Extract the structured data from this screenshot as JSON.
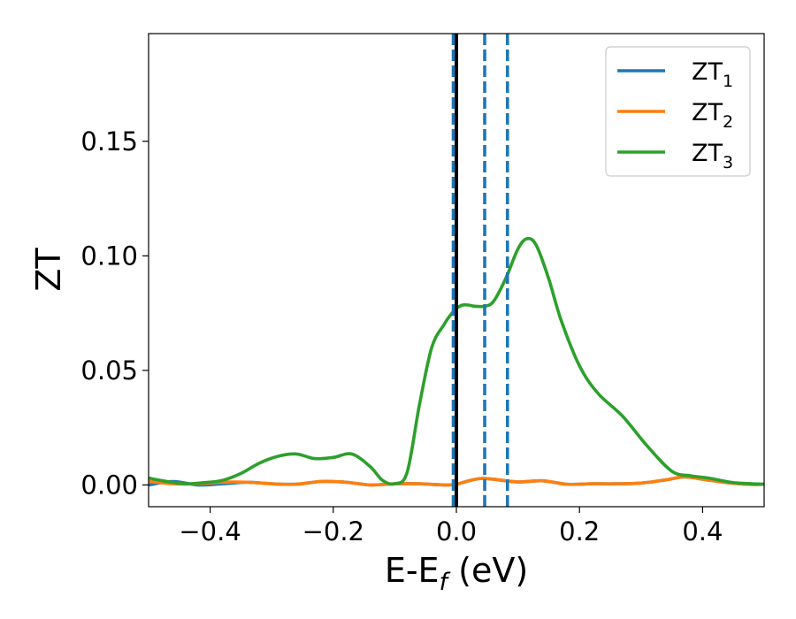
{
  "chart_data": {
    "type": "line",
    "xlabel": {
      "base": "E-E",
      "sub": "f",
      "suffix": " (eV)"
    },
    "ylabel": "ZT",
    "xlim": [
      -0.5,
      0.5
    ],
    "ylim": [
      -0.0095,
      0.197
    ],
    "xticks": [
      -0.4,
      -0.2,
      0.0,
      0.2,
      0.4
    ],
    "xtick_labels": [
      "−0.4",
      "−0.2",
      "0.0",
      "0.2",
      "0.4"
    ],
    "yticks": [
      0.0,
      0.05,
      0.1,
      0.15
    ],
    "ytick_labels": [
      "0.00",
      "0.05",
      "0.10",
      "0.15"
    ],
    "grid": false,
    "legend_position": "top-right",
    "series": [
      {
        "name": "ZT",
        "sub": "1",
        "color": "#1f77b4",
        "x": [
          -0.5,
          -0.46,
          -0.42,
          -0.38,
          -0.34,
          -0.3,
          -0.26,
          -0.22,
          -0.18,
          -0.14,
          -0.1,
          -0.06,
          -0.02,
          0.0,
          0.02,
          0.04,
          0.06,
          0.1,
          0.14,
          0.18,
          0.22,
          0.26,
          0.3,
          0.34,
          0.37,
          0.4,
          0.44,
          0.48,
          0.5
        ],
        "y": [
          0.0,
          0.0015,
          0.0,
          0.0005,
          0.0012,
          0.0005,
          0.0003,
          0.0015,
          0.0012,
          0.0,
          0.0005,
          0.0005,
          0.0,
          0.0003,
          0.0018,
          0.0028,
          0.0025,
          0.0013,
          0.0018,
          0.0003,
          0.0005,
          0.0005,
          0.0008,
          0.0022,
          0.0035,
          0.0025,
          0.001,
          0.0002,
          0.0003
        ]
      },
      {
        "name": "ZT",
        "sub": "2",
        "color": "#ff7f0e",
        "x": [
          -0.5,
          -0.46,
          -0.42,
          -0.38,
          -0.34,
          -0.3,
          -0.26,
          -0.22,
          -0.18,
          -0.14,
          -0.1,
          -0.06,
          -0.02,
          0.0,
          0.02,
          0.04,
          0.06,
          0.1,
          0.14,
          0.18,
          0.22,
          0.26,
          0.3,
          0.34,
          0.37,
          0.4,
          0.44,
          0.48,
          0.5
        ],
        "y": [
          0.0015,
          0.0005,
          0.0005,
          0.0012,
          0.0012,
          0.0005,
          0.0003,
          0.0015,
          0.0012,
          0.0,
          0.0005,
          0.0005,
          0.0,
          0.0003,
          0.0018,
          0.0028,
          0.0025,
          0.0013,
          0.0018,
          0.0003,
          0.0005,
          0.0005,
          0.0008,
          0.0022,
          0.0035,
          0.0025,
          0.001,
          0.0002,
          0.0003
        ]
      },
      {
        "name": "ZT",
        "sub": "3",
        "color": "#2ca02c",
        "x": [
          -0.5,
          -0.47,
          -0.44,
          -0.41,
          -0.38,
          -0.35,
          -0.32,
          -0.29,
          -0.26,
          -0.23,
          -0.2,
          -0.17,
          -0.14,
          -0.12,
          -0.1,
          -0.08,
          -0.06,
          -0.04,
          -0.02,
          -0.01,
          0.0,
          0.01,
          0.02,
          0.03,
          0.045,
          0.06,
          0.08,
          0.1,
          0.115,
          0.13,
          0.15,
          0.17,
          0.2,
          0.23,
          0.27,
          0.31,
          0.35,
          0.38,
          0.41,
          0.45,
          0.5
        ],
        "y": [
          0.003,
          0.0015,
          0.0005,
          0.001,
          0.002,
          0.005,
          0.0095,
          0.0125,
          0.0135,
          0.0115,
          0.012,
          0.0135,
          0.008,
          0.002,
          0.0005,
          0.0055,
          0.035,
          0.06,
          0.07,
          0.074,
          0.077,
          0.0785,
          0.0785,
          0.078,
          0.078,
          0.08,
          0.09,
          0.103,
          0.1075,
          0.1045,
          0.09,
          0.072,
          0.052,
          0.04,
          0.03,
          0.017,
          0.006,
          0.004,
          0.003,
          0.001,
          0.0003
        ]
      }
    ],
    "vlines": [
      {
        "x": 0.0,
        "style": "solid",
        "color": "#000000"
      },
      {
        "x": -0.005,
        "style": "dashed",
        "color": "#1f77b4"
      },
      {
        "x": 0.046,
        "style": "dashed",
        "color": "#1f77b4"
      },
      {
        "x": 0.083,
        "style": "dashed",
        "color": "#1f77b4"
      }
    ]
  }
}
